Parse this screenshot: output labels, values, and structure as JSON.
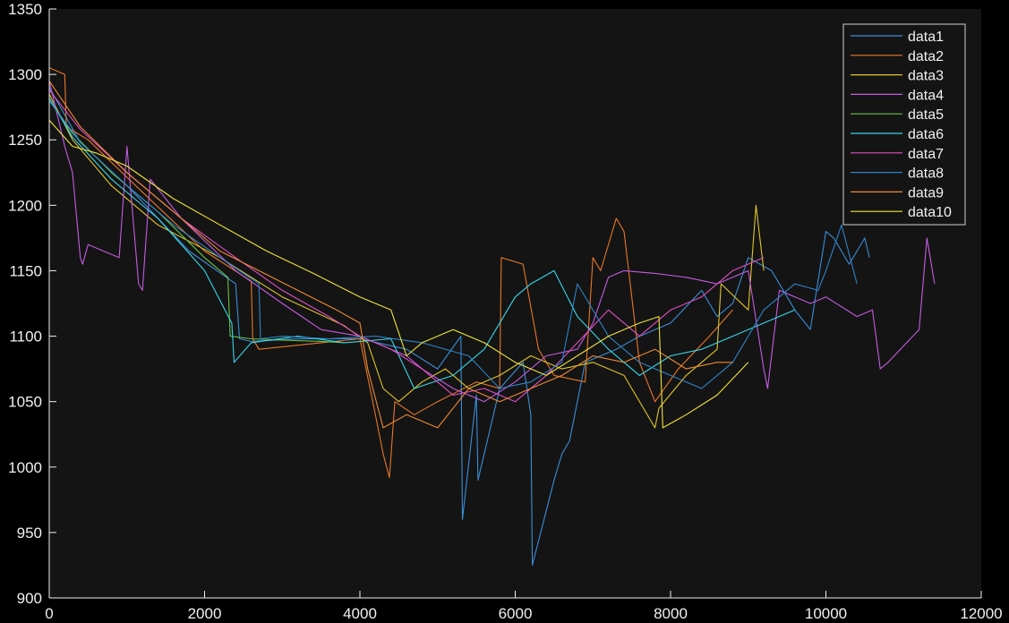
{
  "chart_data": {
    "type": "line",
    "title": "",
    "xlabel": "",
    "ylabel": "",
    "xlim": [
      0,
      12000
    ],
    "ylim": [
      900,
      1350
    ],
    "x_ticks": [
      0,
      2000,
      4000,
      6000,
      8000,
      10000,
      12000
    ],
    "y_ticks": [
      900,
      950,
      1000,
      1050,
      1100,
      1150,
      1200,
      1250,
      1300,
      1350
    ],
    "x_tick_labels": [
      "0",
      "2000",
      "4000",
      "6000",
      "8000",
      "10000",
      "12000"
    ],
    "y_tick_labels": [
      "900",
      "950",
      "1000",
      "1050",
      "1100",
      "1150",
      "1200",
      "1250",
      "1300",
      "1350"
    ],
    "grid": false,
    "legend_position": "top-right",
    "background_color": "#000000",
    "plot_area_color": "#141414",
    "axis_color": "#f0f0f0",
    "series": [
      {
        "name": "data1",
        "color": "#3b8ed8",
        "x": [
          0,
          400,
          1000,
          1800,
          2400,
          2450,
          2600,
          3200,
          4000,
          4600,
          5000,
          5300,
          5320,
          5500,
          5520,
          5800,
          6100,
          6200,
          6220,
          6500,
          6600,
          6700,
          6900,
          7300,
          7600,
          8000,
          8400,
          8600,
          8800,
          9000,
          9300,
          9600,
          9800,
          10000,
          10100,
          10300,
          10500,
          10560
        ],
        "y": [
          1290,
          1248,
          1215,
          1165,
          1140,
          1098,
          1096,
          1098,
          1098,
          1090,
          1075,
          1100,
          960,
          1055,
          990,
          1060,
          1080,
          1040,
          925,
          990,
          1010,
          1020,
          1080,
          1090,
          1100,
          1110,
          1135,
          1115,
          1125,
          1160,
          1150,
          1120,
          1105,
          1180,
          1175,
          1155,
          1175,
          1160
        ]
      },
      {
        "name": "data2",
        "color": "#e8772a",
        "x": [
          0,
          200,
          220,
          500,
          1200,
          2000,
          2600,
          2620,
          2700,
          3500,
          4000,
          4200,
          4300,
          4380,
          4450,
          4700,
          5000,
          5500,
          5800,
          5820,
          6100,
          6300,
          6500,
          6900,
          7000,
          7100,
          7300,
          7400,
          7600,
          7800,
          8100,
          8500,
          8800
        ],
        "y": [
          1305,
          1300,
          1260,
          1250,
          1210,
          1165,
          1142,
          1098,
          1090,
          1095,
          1098,
          1040,
          1010,
          992,
          1050,
          1040,
          1050,
          1065,
          1060,
          1160,
          1155,
          1090,
          1070,
          1065,
          1160,
          1150,
          1190,
          1180,
          1080,
          1050,
          1075,
          1100,
          1120
        ]
      },
      {
        "name": "data3",
        "color": "#e0c62c",
        "x": [
          0,
          300,
          800,
          1400,
          2200,
          3000,
          3800,
          4100,
          4300,
          4500,
          4800,
          5100,
          5400,
          5800,
          6200,
          6600,
          7000,
          7400,
          7800,
          7850,
          8200,
          8600,
          8650,
          9000,
          9100,
          9200
        ],
        "y": [
          1285,
          1250,
          1215,
          1185,
          1160,
          1130,
          1108,
          1095,
          1060,
          1050,
          1065,
          1075,
          1060,
          1070,
          1085,
          1075,
          1080,
          1070,
          1030,
          1045,
          1070,
          1090,
          1140,
          1120,
          1200,
          1150
        ]
      },
      {
        "name": "data4",
        "color": "#c35ce0",
        "x": [
          0,
          100,
          200,
          300,
          400,
          430,
          500,
          700,
          900,
          1000,
          1150,
          1200,
          1300,
          1700,
          2400,
          3000,
          3500,
          4000,
          4600,
          4800,
          5200,
          5600,
          6000,
          6400,
          6800,
          7000,
          7200,
          7400,
          7800,
          8200,
          8600,
          9000,
          9200,
          9250,
          9400,
          9800,
          10000,
          10400,
          10600,
          10700,
          10800,
          11200,
          11300,
          11400
        ],
        "y": [
          1295,
          1270,
          1245,
          1225,
          1160,
          1155,
          1170,
          1165,
          1160,
          1245,
          1140,
          1135,
          1220,
          1190,
          1150,
          1125,
          1105,
          1100,
          1085,
          1075,
          1060,
          1050,
          1065,
          1085,
          1090,
          1110,
          1145,
          1150,
          1148,
          1145,
          1140,
          1150,
          1075,
          1060,
          1135,
          1125,
          1130,
          1115,
          1120,
          1075,
          1080,
          1105,
          1175,
          1140
        ]
      },
      {
        "name": "data5",
        "color": "#68c245",
        "x": [
          0,
          300,
          800,
          1400,
          2000,
          2300,
          2330,
          2600,
          3000,
          3500,
          3800
        ],
        "y": [
          1280,
          1255,
          1225,
          1195,
          1160,
          1145,
          1100,
          1098,
          1097,
          1096,
          1095
        ]
      },
      {
        "name": "data6",
        "color": "#38d8e8",
        "x": [
          0,
          300,
          800,
          1400,
          2000,
          2350,
          2380,
          2600,
          3200,
          3800,
          4400,
          4700,
          5200,
          5600,
          5900,
          6000,
          6200,
          6500,
          6800,
          7200,
          7600,
          8000,
          8400,
          8800,
          9200,
          9600
        ],
        "y": [
          1282,
          1252,
          1220,
          1190,
          1150,
          1110,
          1080,
          1095,
          1100,
          1095,
          1098,
          1060,
          1070,
          1090,
          1120,
          1130,
          1140,
          1150,
          1115,
          1090,
          1070,
          1085,
          1090,
          1100,
          1110,
          1120
        ]
      },
      {
        "name": "data7",
        "color": "#e04fc2",
        "x": [
          0,
          400,
          1000,
          1700,
          2400,
          3000,
          3600,
          4000,
          4400,
          4800,
          5200,
          5600,
          6000,
          6400,
          6800,
          7200,
          7600,
          8000,
          8400,
          8800,
          9200
        ],
        "y": [
          1288,
          1258,
          1225,
          1190,
          1160,
          1135,
          1115,
          1100,
          1090,
          1075,
          1055,
          1060,
          1050,
          1070,
          1095,
          1120,
          1100,
          1120,
          1130,
          1150,
          1160
        ]
      },
      {
        "name": "data8",
        "color": "#2f83c8",
        "x": [
          0,
          400,
          1000,
          1600,
          2200,
          2700,
          2720,
          3000,
          3600,
          4200,
          4800,
          5400,
          5800,
          6200,
          6600,
          6800,
          7200,
          7600,
          8000,
          8400,
          8600,
          8800,
          9200,
          9600,
          9900,
          10000,
          10200,
          10400
        ],
        "y": [
          1280,
          1248,
          1215,
          1185,
          1160,
          1140,
          1098,
          1100,
          1098,
          1100,
          1095,
          1085,
          1060,
          1065,
          1080,
          1140,
          1100,
          1080,
          1070,
          1060,
          1070,
          1080,
          1120,
          1140,
          1135,
          1150,
          1185,
          1140
        ]
      },
      {
        "name": "data9",
        "color": "#ef8a35",
        "x": [
          0,
          400,
          1000,
          1600,
          2200,
          2700,
          3200,
          3700,
          4000,
          4100,
          4300,
          4600,
          5000,
          5400,
          5800,
          6200,
          6600,
          7000,
          7400,
          7800,
          8200,
          8600,
          8800
        ],
        "y": [
          1295,
          1260,
          1225,
          1195,
          1165,
          1150,
          1135,
          1120,
          1110,
          1075,
          1030,
          1040,
          1030,
          1060,
          1050,
          1060,
          1070,
          1085,
          1080,
          1090,
          1075,
          1080,
          1080
        ]
      },
      {
        "name": "data10",
        "color": "#f0e33c",
        "x": [
          0,
          300,
          600,
          1000,
          1600,
          2200,
          2800,
          3400,
          4000,
          4400,
          4600,
          4800,
          5200,
          5600,
          6000,
          6400,
          6800,
          7200,
          7600,
          7850,
          7900,
          8200,
          8600,
          9000
        ],
        "y": [
          1265,
          1245,
          1240,
          1230,
          1205,
          1185,
          1165,
          1148,
          1130,
          1120,
          1085,
          1095,
          1105,
          1095,
          1080,
          1070,
          1085,
          1100,
          1110,
          1115,
          1030,
          1040,
          1055,
          1080
        ]
      }
    ]
  }
}
